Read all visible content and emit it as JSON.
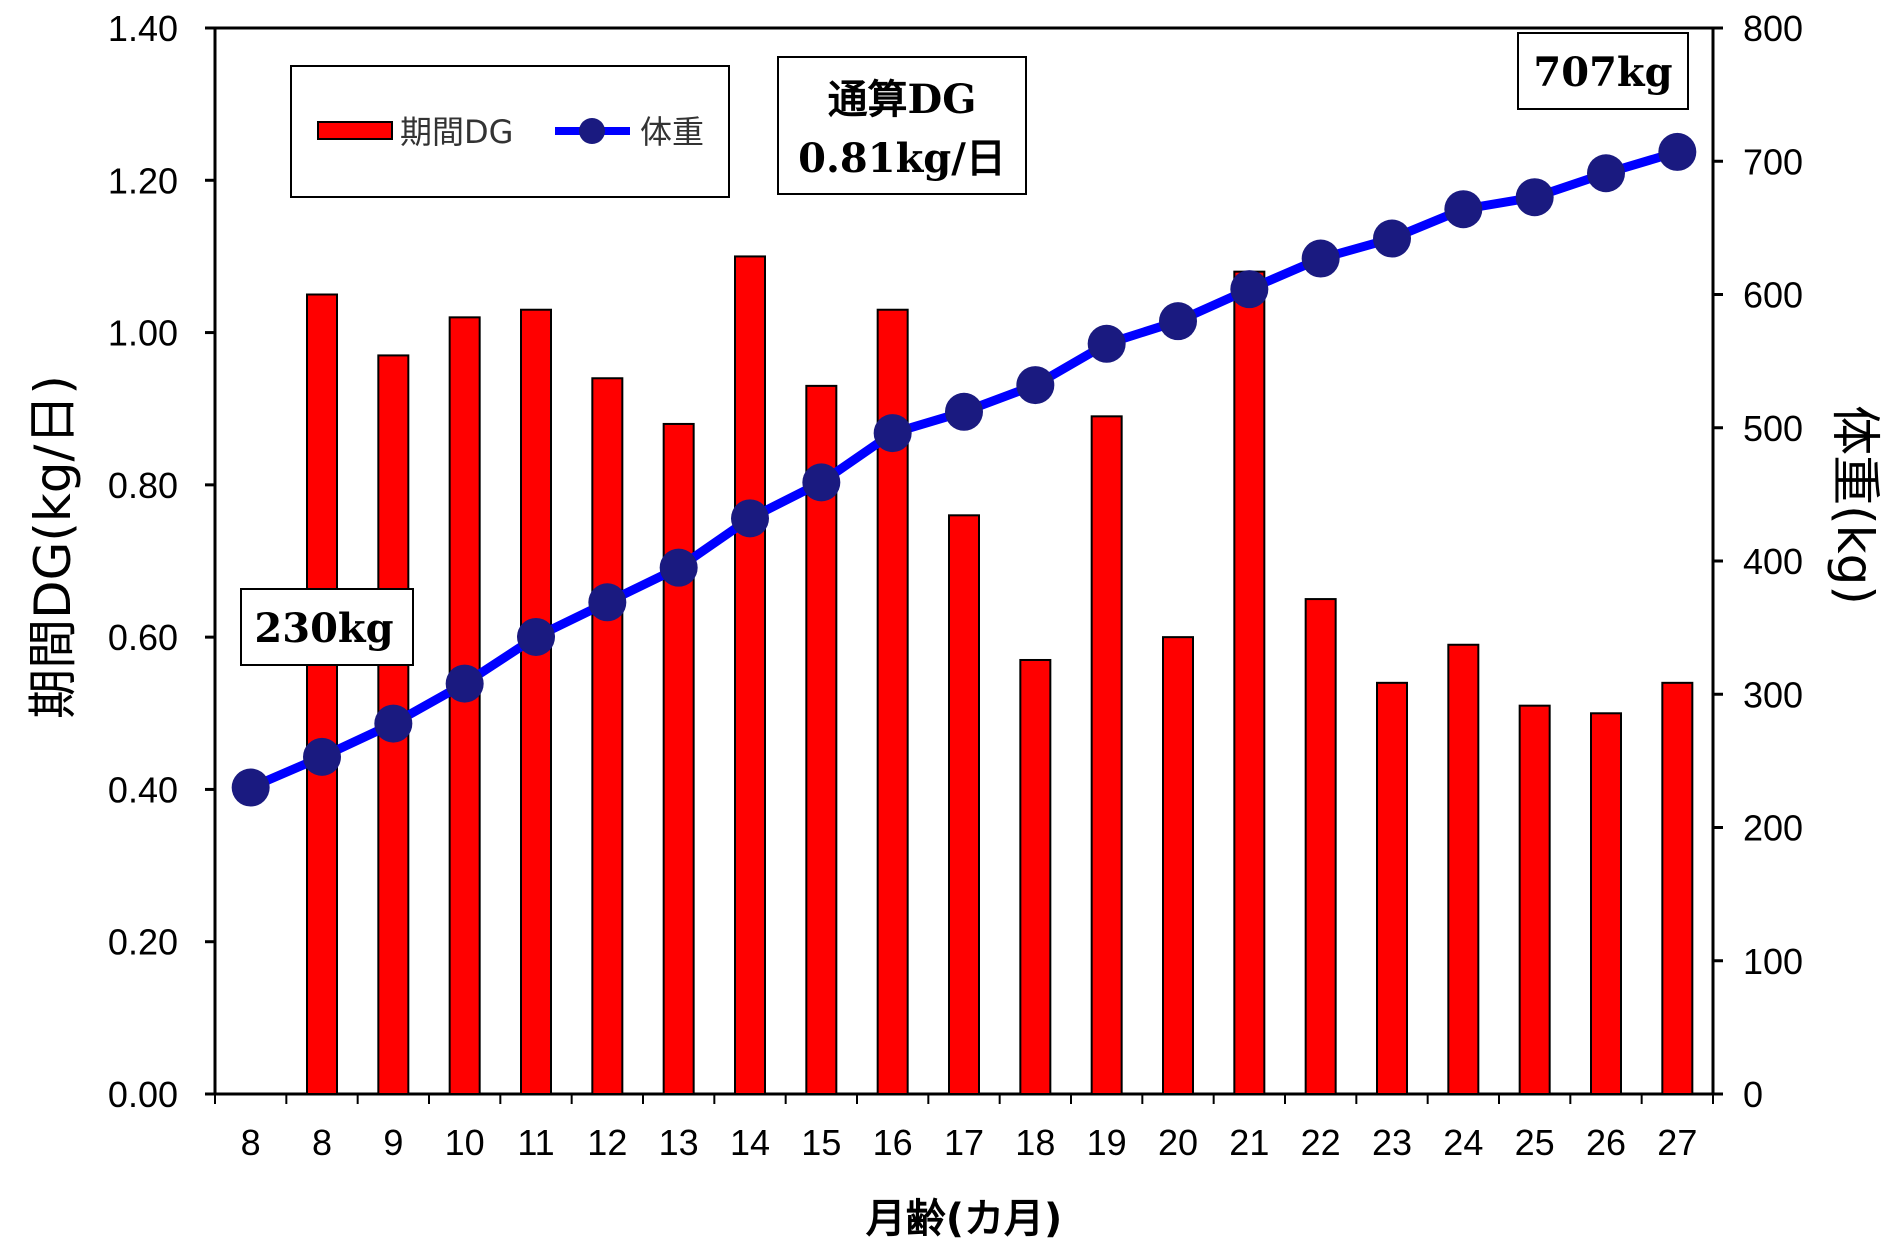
{
  "chart_data": {
    "type": "bar",
    "categories": [
      "8",
      "8",
      "9",
      "10",
      "11",
      "12",
      "13",
      "14",
      "15",
      "16",
      "17",
      "18",
      "19",
      "20",
      "21",
      "22",
      "23",
      "24",
      "25",
      "26",
      "27"
    ],
    "series": [
      {
        "name": "期間DG",
        "type": "bar",
        "axis": "left",
        "color": "#ff0000",
        "values": [
          null,
          1.05,
          0.97,
          1.02,
          1.03,
          0.94,
          0.88,
          1.1,
          0.93,
          1.03,
          0.76,
          0.57,
          0.89,
          0.6,
          1.08,
          0.65,
          0.54,
          0.59,
          0.51,
          0.5,
          0.54
        ]
      },
      {
        "name": "体重",
        "type": "line",
        "axis": "right",
        "color": "#0000ff",
        "values": [
          230,
          253,
          278,
          308,
          343,
          369,
          395,
          432,
          459,
          496,
          512,
          532,
          563,
          580,
          604,
          627,
          642,
          664,
          673,
          691,
          707
        ]
      }
    ],
    "xlabel": "月齢(カ月)",
    "ylabel": "期間DG(kg/日)",
    "y2label": "体重(kg)",
    "ylim": [
      0,
      1.4
    ],
    "y2lim": [
      0,
      800
    ],
    "yticks": [
      "0.00",
      "0.20",
      "0.40",
      "0.60",
      "0.80",
      "1.00",
      "1.20",
      "1.40"
    ],
    "y2ticks": [
      "0",
      "100",
      "200",
      "300",
      "400",
      "500",
      "600",
      "700",
      "800"
    ],
    "grid": false,
    "legend": "top-left",
    "annotations": {
      "start": "230kg",
      "end": "707kg",
      "overall_line1": "通算DG",
      "overall_line2": "0.81kg/日"
    }
  }
}
